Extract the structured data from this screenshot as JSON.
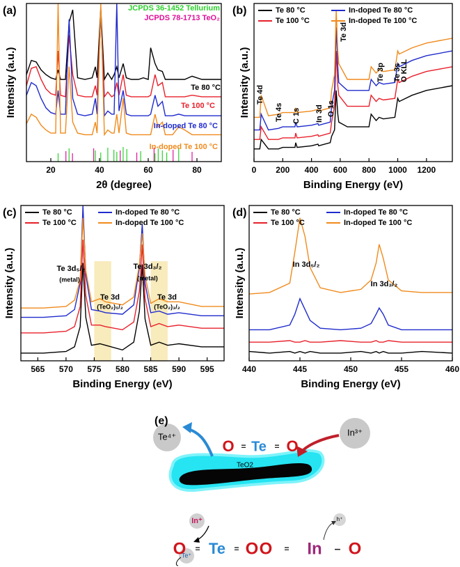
{
  "chart_data": [
    {
      "type": "line",
      "panel": "(a)",
      "xlabel": "2θ (degree)",
      "ylabel": "Intensity (a.u.)",
      "xlim": [
        10,
        90
      ],
      "xticks": [
        20,
        40,
        60,
        80
      ],
      "ylim": [
        0,
        100
      ],
      "x": [
        10,
        12,
        14,
        16,
        18,
        20,
        22,
        23,
        24,
        26,
        27.5,
        29,
        31,
        34,
        37,
        38.3,
        39,
        40.5,
        42,
        43.4,
        45,
        46,
        47.1,
        48,
        49.7,
        51,
        53,
        56,
        58,
        60,
        61,
        62.8,
        64,
        65.8,
        67,
        70,
        72.5,
        75,
        78,
        82,
        86,
        90
      ],
      "series": [
        {
          "name": "Te 80 °C",
          "color": "#000000",
          "values": [
            55,
            64,
            63,
            58,
            55,
            53,
            52,
            58,
            52,
            52,
            88,
            96,
            53,
            52,
            53,
            60,
            53,
            97,
            52,
            56,
            52,
            55,
            60,
            53,
            62,
            53,
            52,
            52,
            53,
            52,
            72,
            62,
            58,
            57,
            52,
            52,
            52,
            52,
            54,
            52,
            52,
            52
          ]
        },
        {
          "name": "Te 100 °C",
          "color": "#e8202a",
          "values": [
            48,
            59,
            60,
            52,
            46,
            43,
            42,
            70,
            42,
            41,
            80,
            55,
            42,
            41,
            41,
            48,
            42,
            92,
            41,
            44,
            41,
            42,
            50,
            42,
            55,
            42,
            41,
            41,
            41,
            41,
            42,
            55,
            48,
            50,
            41,
            41,
            41,
            41,
            42,
            41,
            41,
            41
          ]
        },
        {
          "name": "In-doped Te 80 °C",
          "color": "#1f2bcc",
          "values": [
            42,
            50,
            48,
            40,
            34,
            31,
            30,
            45,
            30,
            30,
            90,
            40,
            30,
            29,
            30,
            40,
            30,
            95,
            29,
            32,
            30,
            30,
            100,
            32,
            45,
            30,
            29,
            29,
            29,
            29,
            30,
            42,
            35,
            38,
            29,
            29,
            30,
            29,
            29,
            29,
            29,
            29
          ]
        },
        {
          "name": "In-doped Te 100 °C",
          "color": "#f08a1c",
          "values": [
            24,
            30,
            28,
            23,
            20,
            18,
            18,
            100,
            18,
            18,
            60,
            25,
            18,
            17,
            17,
            25,
            18,
            100,
            17,
            20,
            18,
            18,
            30,
            18,
            40,
            18,
            17,
            17,
            17,
            17,
            17,
            30,
            22,
            25,
            17,
            17,
            22,
            20,
            17,
            17,
            17,
            17
          ]
        }
      ],
      "references": [
        {
          "name": "JCPDS 36-1452 Tellurium",
          "color": "#2bd12b",
          "x": [
            23,
            27.5,
            38.3,
            40.5,
            43.4,
            45.9,
            47.1,
            49.7,
            51.2,
            56.9,
            62.8,
            64.1,
            65.8,
            67.6,
            72.5
          ]
        },
        {
          "name": "JCPDS 78-1713 TeO₂",
          "color": "#e0109a",
          "x": [
            26.2,
            28.9,
            37.6,
            48.5,
            55.3,
            62.4,
            70.2,
            78
          ]
        }
      ]
    },
    {
      "type": "line",
      "panel": "(b)",
      "xlabel": "Binding Energy (eV)",
      "ylabel": "Intensity (a.u.)",
      "xlim": [
        0,
        1380
      ],
      "xticks": [
        0,
        200,
        400,
        600,
        800,
        1000,
        1200
      ],
      "ylim": [
        0,
        100
      ],
      "x": [
        0,
        40,
        50,
        100,
        170,
        200,
        285,
        290,
        300,
        400,
        445,
        450,
        530,
        540,
        560,
        572,
        583,
        590,
        650,
        700,
        800,
        815,
        850,
        870,
        900,
        980,
        1000,
        1010,
        1100,
        1200,
        1380
      ],
      "series": [
        {
          "name": "Te 80 °C",
          "color": "#000000",
          "values": [
            8,
            8,
            14,
            8,
            8,
            9,
            9,
            12,
            9,
            10,
            11,
            10,
            12,
            16,
            20,
            45,
            30,
            25,
            22,
            22,
            22,
            30,
            26,
            28,
            27,
            28,
            40,
            38,
            42,
            45,
            48
          ]
        },
        {
          "name": "Te 100 °C",
          "color": "#e8202a",
          "values": [
            14,
            14,
            22,
            14,
            14,
            15,
            15,
            18,
            15,
            16,
            17,
            16,
            18,
            25,
            35,
            70,
            48,
            42,
            35,
            35,
            35,
            42,
            38,
            40,
            39,
            40,
            52,
            50,
            54,
            57,
            60
          ]
        },
        {
          "name": "In-doped Te 80 °C",
          "color": "#1f2bcc",
          "values": [
            20,
            20,
            30,
            20,
            21,
            22,
            22,
            25,
            22,
            23,
            24,
            23,
            25,
            35,
            45,
            85,
            60,
            50,
            45,
            45,
            45,
            52,
            48,
            50,
            49,
            50,
            62,
            60,
            64,
            67,
            70
          ]
        },
        {
          "name": "In-doped Te 100 °C",
          "color": "#f08a1c",
          "values": [
            28,
            28,
            42,
            29,
            30,
            31,
            31,
            34,
            31,
            32,
            33,
            32,
            34,
            45,
            55,
            96,
            70,
            62,
            52,
            52,
            52,
            60,
            56,
            58,
            57,
            58,
            70,
            68,
            72,
            75,
            78
          ]
        }
      ],
      "annotations": [
        "Te 4d",
        "Te 4s",
        "C 1s",
        "In 3d",
        "O 1s",
        "Te 3d",
        "Te 3p",
        "Te 3s",
        "O KLL"
      ]
    },
    {
      "type": "line",
      "panel": "(c)",
      "xlabel": "Binding Energy (eV)",
      "ylabel": "Intensity (a.u.)",
      "xlim": [
        562,
        598
      ],
      "xticks": [
        565,
        570,
        575,
        580,
        585,
        590,
        595
      ],
      "ylim": [
        0,
        100
      ],
      "x": [
        562,
        566,
        570,
        571.5,
        572.5,
        573,
        573.5,
        574.5,
        576,
        577,
        580,
        582,
        583,
        583.5,
        584,
        585,
        586.5,
        588,
        590,
        594,
        598
      ],
      "series": [
        {
          "name": "Te 80 °C",
          "color": "#000000",
          "values": [
            5,
            5,
            6,
            9,
            22,
            63,
            28,
            10,
            11,
            10,
            7,
            12,
            32,
            62,
            27,
            10,
            12,
            10,
            11,
            9,
            9
          ]
        },
        {
          "name": "Te 100 °C",
          "color": "#e8202a",
          "values": [
            18,
            18,
            19,
            22,
            35,
            78,
            42,
            23,
            23,
            22,
            20,
            25,
            45,
            75,
            40,
            22,
            24,
            22,
            23,
            21,
            21
          ]
        },
        {
          "name": "In-doped Te 80 °C",
          "color": "#1f2bcc",
          "values": [
            28,
            28,
            29,
            33,
            50,
            100,
            55,
            33,
            32,
            31,
            30,
            36,
            60,
            88,
            50,
            31,
            32,
            30,
            31,
            29,
            29
          ]
        },
        {
          "name": "In-doped Te 100 °C",
          "color": "#f08a1c",
          "values": [
            34,
            34,
            35,
            39,
            52,
            92,
            58,
            38,
            40,
            38,
            36,
            41,
            62,
            82,
            55,
            37,
            40,
            38,
            38,
            35,
            35
          ]
        }
      ],
      "bands": [
        [
          575,
          578
        ],
        [
          585,
          588
        ]
      ],
      "band_color": "#f7e7b0",
      "annotations": [
        "Te 3d₅/₂",
        "(metal)",
        "Te 3d₃/₂",
        "(metal)",
        "Te 3d",
        "(TeO₂)₅/₂",
        "Te 3d",
        "(TeO₂)₃/₂"
      ]
    },
    {
      "type": "line",
      "panel": "(d)",
      "xlabel": "Binding Energy (eV)",
      "ylabel": "Intensity (a.u.)",
      "xlim": [
        440,
        460
      ],
      "xticks": [
        440,
        445,
        450,
        455,
        460
      ],
      "ylim": [
        0,
        100
      ],
      "x": [
        440,
        442,
        444,
        444.5,
        445,
        445.5,
        446,
        447,
        449,
        451,
        452,
        452.5,
        452.8,
        453.2,
        453.7,
        455,
        457,
        460
      ],
      "series": [
        {
          "name": "Te 80 °C",
          "color": "#000000",
          "values": [
            6,
            5,
            6,
            5,
            6,
            5,
            6,
            5,
            5,
            6,
            5,
            6,
            5,
            6,
            5,
            5,
            6,
            5
          ]
        },
        {
          "name": "Te 100 °C",
          "color": "#e8202a",
          "values": [
            12,
            12,
            13,
            12,
            12,
            13,
            12,
            12,
            13,
            12,
            12,
            13,
            12,
            12,
            13,
            12,
            12,
            12
          ]
        },
        {
          "name": "In-doped Te 80 °C",
          "color": "#1f2bcc",
          "values": [
            20,
            20,
            23,
            30,
            40,
            33,
            26,
            21,
            20,
            21,
            24,
            30,
            34,
            30,
            23,
            20,
            20,
            20
          ]
        },
        {
          "name": "In-doped Te 100 °C",
          "color": "#f08a1c",
          "values": [
            43,
            44,
            50,
            70,
            92,
            80,
            60,
            47,
            44,
            46,
            52,
            63,
            75,
            66,
            52,
            45,
            44,
            44
          ]
        }
      ],
      "annotations": [
        "In 3d₅/₂",
        "In 3d₃/₂"
      ]
    }
  ],
  "diagram": {
    "panel": "(e)",
    "te4": "Te⁴⁺",
    "in3": "In³⁺",
    "rod": "TeO2",
    "top_molecule": [
      "O",
      "=",
      "Te",
      "=",
      "O"
    ],
    "in_plus": "In⁺",
    "hole": "h⁺",
    "te_plus": "Te⁺",
    "left_molecule": [
      "O",
      "=",
      "Te",
      "=",
      "O"
    ],
    "right_molecule": [
      "O",
      "=",
      "In",
      "–",
      "O"
    ]
  }
}
